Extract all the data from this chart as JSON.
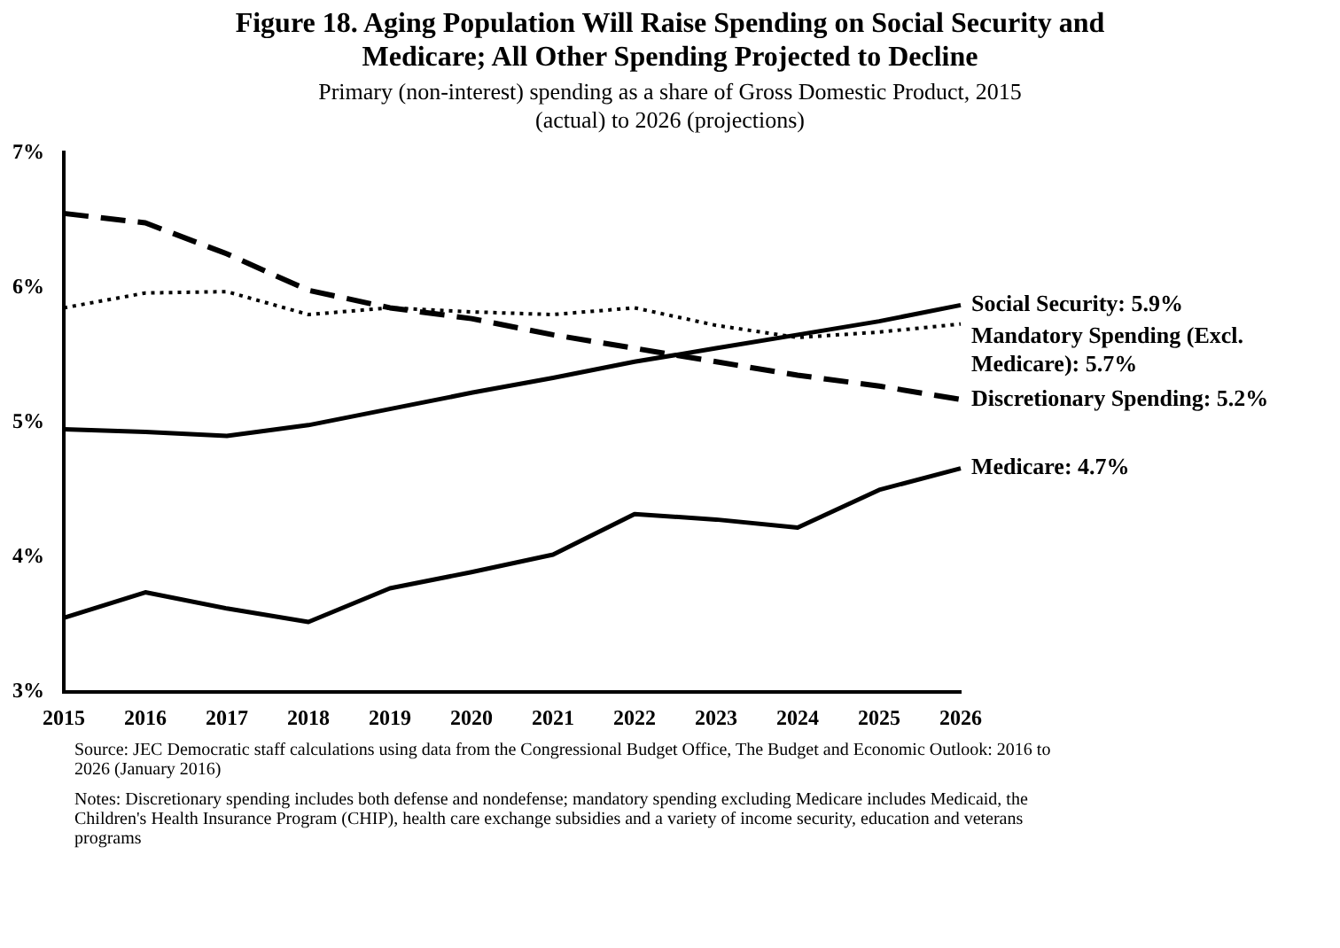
{
  "chart_data": {
    "type": "line",
    "title": "Figure 18. Aging Population Will Raise Spending on Social Security and Medicare; All Other Spending Projected to Decline",
    "subtitle": "Primary (non-interest) spending as a share of Gross Domestic Product, 2015 (actual) to 2026 (projections)",
    "categories": [
      "2015",
      "2016",
      "2017",
      "2018",
      "2019",
      "2020",
      "2021",
      "2022",
      "2023",
      "2024",
      "2025",
      "2026"
    ],
    "series": [
      {
        "name": "Social Security: 5.9%",
        "color": "#000000",
        "line_style": "solid",
        "values": [
          4.95,
          4.93,
          4.9,
          4.98,
          5.1,
          5.22,
          5.33,
          5.45,
          5.55,
          5.65,
          5.75,
          5.87
        ]
      },
      {
        "name": "Mandatory Spending (Excl. Medicare): 5.7%",
        "color": "#000000",
        "line_style": "dotted",
        "values": [
          5.85,
          5.96,
          5.97,
          5.8,
          5.85,
          5.82,
          5.8,
          5.85,
          5.72,
          5.63,
          5.67,
          5.73
        ]
      },
      {
        "name": "Discretionary Spending: 5.2%",
        "color": "#000000",
        "line_style": "dashed",
        "values": [
          6.55,
          6.48,
          6.25,
          5.98,
          5.85,
          5.77,
          5.65,
          5.55,
          5.45,
          5.35,
          5.27,
          5.17
        ]
      },
      {
        "name": "Medicare: 4.7%",
        "color": "#000000",
        "line_style": "solid",
        "values": [
          3.55,
          3.74,
          3.62,
          3.52,
          3.77,
          3.89,
          4.02,
          4.32,
          4.28,
          4.22,
          4.5,
          4.66
        ]
      }
    ],
    "ylim": [
      3,
      7
    ],
    "yticks": [
      {
        "value": 3,
        "label": "3%"
      },
      {
        "value": 4,
        "label": "4%"
      },
      {
        "value": 5,
        "label": "5%"
      },
      {
        "value": 6,
        "label": "6%"
      },
      {
        "value": 7,
        "label": "7%"
      }
    ],
    "grid": false,
    "legend": false,
    "marker": "none",
    "annotations": [
      "Source: JEC Democratic staff calculations using data from the Congressional Budget Office, The Budget and Economic Outlook: 2016 to 2026 (January 2016)",
      "Notes: Discretionary spending includes both defense and nondefense; mandatory spending excluding Medicare includes Medicaid, the Children's Health Insurance Program (CHIP), health care exchange subsidies and a variety of income security, education and veterans programs"
    ]
  }
}
